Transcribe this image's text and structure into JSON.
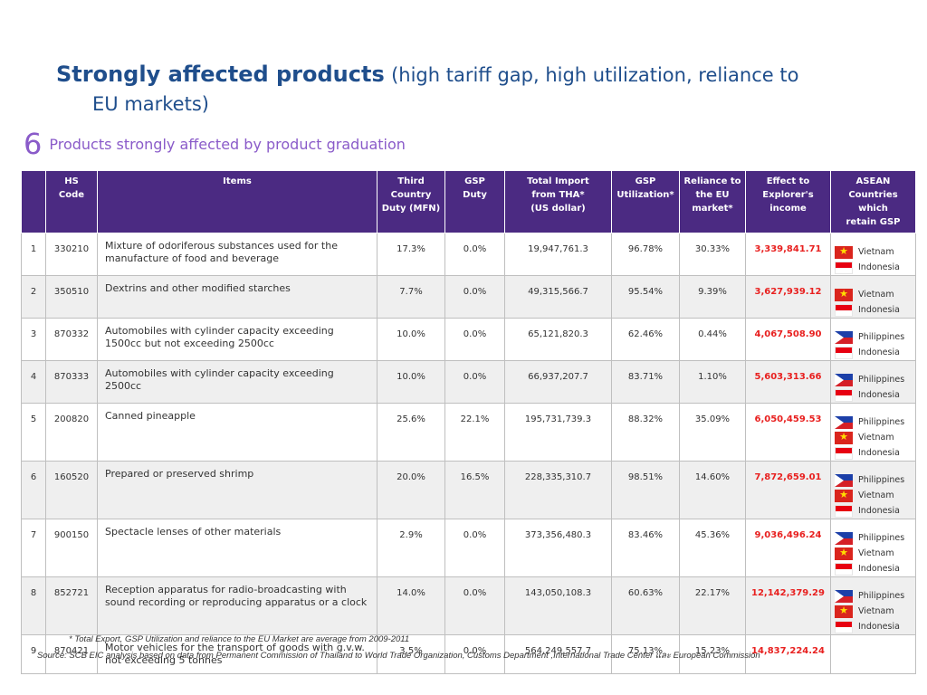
{
  "title": {
    "strong": "Strongly affected products",
    "sub_line1": "(high tariff gap, high utilization, reliance to",
    "sub_line2": "EU markets)"
  },
  "section": {
    "number": "6",
    "heading": "Products strongly affected by product graduation"
  },
  "table": {
    "headers": {
      "no": "",
      "hs": [
        "HS",
        "Code"
      ],
      "items": "Items",
      "third": [
        "Third",
        "Country",
        "Duty (MFN)"
      ],
      "gsp": [
        "GSP",
        "Duty"
      ],
      "import": [
        "Total Import",
        "from THA*",
        "(US dollar)"
      ],
      "util": [
        "GSP",
        "Utilization*"
      ],
      "reliance": [
        "Reliance to",
        "the EU",
        "market*"
      ],
      "effect": [
        "Effect to",
        "Explorer's",
        "income"
      ],
      "asean": [
        "ASEAN",
        "Countries which",
        "retain GSP"
      ]
    },
    "rows": [
      {
        "no": "1",
        "hs": "330210",
        "item": "Mixture of odoriferous substances used for the manufacture of food and beverage",
        "third": "17.3%",
        "gsp": "0.0%",
        "import": "19,947,761.3",
        "util": "96.78%",
        "reliance": "30.33%",
        "effect": "3,339,841.71",
        "countries": [
          {
            "name": "Vietnam",
            "flag": "vn"
          },
          {
            "name": "Indonesia",
            "flag": "id"
          }
        ]
      },
      {
        "no": "2",
        "hs": "350510",
        "item": "Dextrins and other modified starches",
        "third": "7.7%",
        "gsp": "0.0%",
        "import": "49,315,566.7",
        "util": "95.54%",
        "reliance": "9.39%",
        "effect": "3,627,939.12",
        "countries": [
          {
            "name": "Vietnam",
            "flag": "vn"
          },
          {
            "name": "Indonesia",
            "flag": "id"
          }
        ]
      },
      {
        "no": "3",
        "hs": "870332",
        "item": "Automobiles with cylinder capacity exceeding 1500cc but not exceeding 2500cc",
        "third": "10.0%",
        "gsp": "0.0%",
        "import": "65,121,820.3",
        "util": "62.46%",
        "reliance": "0.44%",
        "effect": "4,067,508.90",
        "countries": [
          {
            "name": "Philippines",
            "flag": "ph"
          },
          {
            "name": "Indonesia",
            "flag": "id"
          }
        ]
      },
      {
        "no": "4",
        "hs": "870333",
        "item": "Automobiles with cylinder capacity exceeding 2500cc",
        "third": "10.0%",
        "gsp": "0.0%",
        "import": "66,937,207.7",
        "util": "83.71%",
        "reliance": "1.10%",
        "effect": "5,603,313.66",
        "countries": [
          {
            "name": "Philippines",
            "flag": "ph"
          },
          {
            "name": "Indonesia",
            "flag": "id"
          }
        ]
      },
      {
        "no": "5",
        "hs": "200820",
        "item": "Canned pineapple",
        "third": "25.6%",
        "gsp": "22.1%",
        "import": "195,731,739.3",
        "util": "88.32%",
        "reliance": "35.09%",
        "effect": "6,050,459.53",
        "countries": [
          {
            "name": "Philippines",
            "flag": "ph"
          },
          {
            "name": "Vietnam",
            "flag": "vn"
          },
          {
            "name": "Indonesia",
            "flag": "id"
          }
        ]
      },
      {
        "no": "6",
        "hs": "160520",
        "item": "Prepared or preserved shrimp",
        "third": "20.0%",
        "gsp": "16.5%",
        "import": "228,335,310.7",
        "util": "98.51%",
        "reliance": "14.60%",
        "effect": "7,872,659.01",
        "countries": [
          {
            "name": "Philippines",
            "flag": "ph"
          },
          {
            "name": "Vietnam",
            "flag": "vn"
          },
          {
            "name": "Indonesia",
            "flag": "id"
          }
        ]
      },
      {
        "no": "7",
        "hs": "900150",
        "item": "Spectacle lenses of other materials",
        "third": "2.9%",
        "gsp": "0.0%",
        "import": "373,356,480.3",
        "util": "83.46%",
        "reliance": "45.36%",
        "effect": "9,036,496.24",
        "countries": [
          {
            "name": "Philippines",
            "flag": "ph"
          },
          {
            "name": "Vietnam",
            "flag": "vn"
          },
          {
            "name": "Indonesia",
            "flag": "id"
          }
        ]
      },
      {
        "no": "8",
        "hs": "852721",
        "item": "Reception apparatus for radio-broadcasting with sound recording or reproducing apparatus or a clock",
        "third": "14.0%",
        "gsp": "0.0%",
        "import": "143,050,108.3",
        "util": "60.63%",
        "reliance": "22.17%",
        "effect": "12,142,379.29",
        "countries": [
          {
            "name": "Philippines",
            "flag": "ph"
          },
          {
            "name": "Vietnam",
            "flag": "vn"
          },
          {
            "name": "Indonesia",
            "flag": "id"
          }
        ]
      },
      {
        "no": "9",
        "hs": "870421",
        "item": "Motor vehicles for the transport of goods with g.v.w. not exceeding 5 tonnes",
        "third": "3.5%",
        "gsp": "0.0%",
        "import": "564,249,557.7",
        "util": "75.13%",
        "reliance": "15.23%",
        "effect": "14,837,224.24",
        "countries": []
      }
    ]
  },
  "footnote": "*  Total Export, GSP Utilization and reliance to the EU Market are average from 2009-2011",
  "source": "Source:  SCB EIC analysis based on data from Permanent Commission of Thailand to World Trade Organization, Customs Department ,International Trade Center และ European Commission"
}
